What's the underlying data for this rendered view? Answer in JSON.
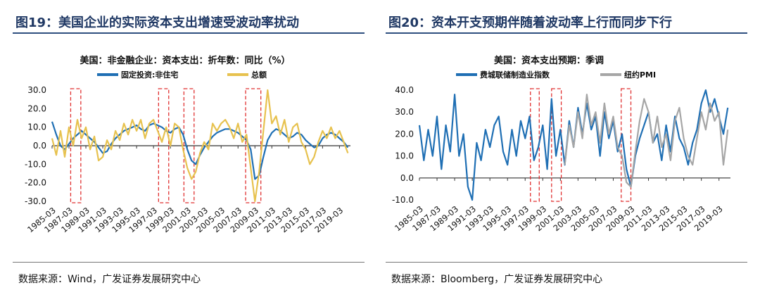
{
  "colors": {
    "blue": "#1f6fb4",
    "gold": "#e7c24f",
    "gray": "#a6a6a6",
    "dash": "#e03030",
    "title": "#1f3864"
  },
  "panels": [
    {
      "fig_title": "图19：美国企业的实际资本支出增速受波动率扰动",
      "source": "数据来源：Wind，广发证券发展研究中心"
    },
    {
      "fig_title": "图20：资本开支预期伴随着波动率上行而同步下行",
      "source": "数据来源：Bloomberg，广发证券发展研究中心"
    }
  ],
  "chart_data": [
    {
      "type": "line",
      "title": "美国：非金融企业：资本支出：折年数：同比（%）",
      "ylim": [
        -30,
        30
      ],
      "yticks": [
        "30.0",
        "20.0",
        "10.0",
        "0.0",
        "-10.0",
        "-20.0",
        "-30.0"
      ],
      "x_range": [
        1985.0,
        2020.3
      ],
      "xticks": [
        "1985-03",
        "1987-03",
        "1989-03",
        "1991-03",
        "1993-03",
        "1995-03",
        "1997-03",
        "1999-03",
        "2001-03",
        "2003-03",
        "2005-03",
        "2007-03",
        "2009-03",
        "2011-03",
        "2013-03",
        "2015-03",
        "2017-03",
        "2019-03"
      ],
      "highlight_periods": [
        [
          1987.2,
          1988.4
        ],
        [
          1997.6,
          1998.8
        ],
        [
          2000.6,
          2001.8
        ],
        [
          2007.9,
          2009.7
        ]
      ],
      "series": [
        {
          "name": "固定投资:非住宅",
          "color": "#1f6fb4",
          "x": [
            1985.0,
            1985.5,
            1986.0,
            1986.5,
            1987.0,
            1987.5,
            1988.0,
            1988.5,
            1989.0,
            1989.5,
            1990.0,
            1990.5,
            1991.0,
            1991.5,
            1992.0,
            1992.5,
            1993.0,
            1993.5,
            1994.0,
            1994.5,
            1995.0,
            1995.5,
            1996.0,
            1996.5,
            1997.0,
            1997.5,
            1998.0,
            1998.5,
            1999.0,
            1999.5,
            2000.0,
            2000.5,
            2001.0,
            2001.5,
            2002.0,
            2002.5,
            2003.0,
            2003.5,
            2004.0,
            2004.5,
            2005.0,
            2005.5,
            2006.0,
            2006.5,
            2007.0,
            2007.5,
            2008.0,
            2008.5,
            2009.0,
            2009.5,
            2010.0,
            2010.5,
            2011.0,
            2011.5,
            2012.0,
            2012.5,
            2013.0,
            2013.5,
            2014.0,
            2014.5,
            2015.0,
            2015.5,
            2016.0,
            2016.5,
            2017.0,
            2017.5,
            2018.0,
            2018.5,
            2019.0,
            2019.5,
            2020.0
          ],
          "y": [
            13,
            6,
            0,
            -2,
            1,
            4,
            6,
            8,
            6,
            4,
            2,
            -1,
            -4,
            -3,
            1,
            4,
            6,
            8,
            9,
            10,
            11,
            9,
            8,
            11,
            12,
            11,
            10,
            8,
            7,
            9,
            10,
            6,
            -2,
            -8,
            -10,
            -5,
            -1,
            2,
            5,
            7,
            8,
            9,
            9,
            8,
            7,
            5,
            3,
            -2,
            -18,
            -16,
            -6,
            3,
            7,
            9,
            8,
            6,
            4,
            5,
            7,
            6,
            3,
            1,
            -1,
            0,
            4,
            6,
            7,
            6,
            4,
            2,
            -1
          ]
        },
        {
          "name": "总额",
          "color": "#e7c24f",
          "x": [
            1985.0,
            1985.5,
            1986.0,
            1986.5,
            1987.0,
            1987.5,
            1988.0,
            1988.5,
            1989.0,
            1989.5,
            1990.0,
            1990.5,
            1991.0,
            1991.5,
            1992.0,
            1992.5,
            1993.0,
            1993.5,
            1994.0,
            1994.5,
            1995.0,
            1995.5,
            1996.0,
            1996.5,
            1997.0,
            1997.5,
            1998.0,
            1998.5,
            1999.0,
            1999.5,
            2000.0,
            2000.5,
            2001.0,
            2001.5,
            2002.0,
            2002.5,
            2003.0,
            2003.5,
            2004.0,
            2004.5,
            2005.0,
            2005.5,
            2006.0,
            2006.5,
            2007.0,
            2007.5,
            2008.0,
            2008.5,
            2009.0,
            2009.5,
            2010.0,
            2010.5,
            2011.0,
            2011.5,
            2012.0,
            2012.5,
            2013.0,
            2013.5,
            2014.0,
            2014.5,
            2015.0,
            2015.5,
            2016.0,
            2016.5,
            2017.0,
            2017.5,
            2018.0,
            2018.5,
            2019.0,
            2019.5,
            2020.0
          ],
          "y": [
            4,
            -5,
            8,
            -6,
            10,
            0,
            14,
            4,
            10,
            -2,
            5,
            -8,
            -6,
            3,
            -2,
            8,
            3,
            12,
            6,
            14,
            8,
            14,
            4,
            12,
            14,
            8,
            2,
            10,
            0,
            12,
            10,
            -2,
            -12,
            -18,
            -14,
            -4,
            2,
            -2,
            12,
            8,
            12,
            14,
            10,
            4,
            12,
            2,
            6,
            -12,
            -30,
            -14,
            8,
            30,
            12,
            16,
            6,
            14,
            2,
            10,
            12,
            2,
            -2,
            -10,
            -6,
            2,
            8,
            4,
            10,
            4,
            8,
            2,
            -4
          ]
        }
      ]
    },
    {
      "type": "line",
      "title": "美国：资本支出预期：季调",
      "ylim": [
        -10,
        40
      ],
      "yticks": [
        "40.0",
        "30.0",
        "20.0",
        "10.0",
        "0.0",
        "-10.0"
      ],
      "x_range": [
        1985.0,
        2020.3
      ],
      "xticks": [
        "1985-03",
        "1987-03",
        "1989-03",
        "1991-03",
        "1993-03",
        "1995-03",
        "1997-03",
        "1999-03",
        "2001-03",
        "2003-03",
        "2005-03",
        "2007-03",
        "2009-03",
        "2011-03",
        "2013-03",
        "2015-03",
        "2017-03",
        "2019-03"
      ],
      "highlight_periods": [
        [
          1997.6,
          1998.6
        ],
        [
          2000.0,
          2001.1
        ],
        [
          2007.9,
          2009.0
        ]
      ],
      "series": [
        {
          "name": "费城联储制造业指数",
          "color": "#1f6fb4",
          "x": [
            1985.0,
            1985.5,
            1986.0,
            1986.5,
            1987.0,
            1987.5,
            1988.0,
            1988.5,
            1989.0,
            1989.5,
            1990.0,
            1990.5,
            1991.0,
            1991.5,
            1992.0,
            1992.5,
            1993.0,
            1993.5,
            1994.0,
            1994.5,
            1995.0,
            1995.5,
            1996.0,
            1996.5,
            1997.0,
            1997.5,
            1998.0,
            1998.5,
            1999.0,
            1999.5,
            2000.0,
            2000.5,
            2001.0,
            2001.5,
            2002.0,
            2002.5,
            2003.0,
            2003.5,
            2004.0,
            2004.5,
            2005.0,
            2005.5,
            2006.0,
            2006.5,
            2007.0,
            2007.5,
            2008.0,
            2008.5,
            2009.0,
            2009.5,
            2010.0,
            2010.5,
            2011.0,
            2011.5,
            2012.0,
            2012.5,
            2013.0,
            2013.5,
            2014.0,
            2014.5,
            2015.0,
            2015.5,
            2016.0,
            2016.5,
            2017.0,
            2017.5,
            2018.0,
            2018.5,
            2019.0,
            2019.5,
            2020.0
          ],
          "y": [
            24,
            8,
            22,
            10,
            28,
            4,
            24,
            12,
            38,
            10,
            20,
            -4,
            -10,
            16,
            8,
            22,
            14,
            24,
            28,
            12,
            6,
            22,
            10,
            26,
            18,
            28,
            8,
            14,
            24,
            4,
            36,
            10,
            22,
            6,
            26,
            14,
            32,
            20,
            34,
            22,
            28,
            10,
            30,
            18,
            26,
            12,
            20,
            4,
            -4,
            10,
            18,
            24,
            30,
            16,
            20,
            8,
            24,
            12,
            28,
            18,
            14,
            6,
            16,
            22,
            34,
            40,
            30,
            36,
            28,
            20,
            32
          ]
        },
        {
          "name": "纽约PMI",
          "color": "#a6a6a6",
          "x": [
            2001.5,
            2002.0,
            2002.5,
            2003.0,
            2003.5,
            2004.0,
            2004.5,
            2005.0,
            2005.5,
            2006.0,
            2006.5,
            2007.0,
            2007.5,
            2008.0,
            2008.5,
            2009.0,
            2009.5,
            2010.0,
            2010.5,
            2011.0,
            2011.5,
            2012.0,
            2012.5,
            2013.0,
            2013.5,
            2014.0,
            2014.5,
            2015.0,
            2015.5,
            2016.0,
            2016.5,
            2017.0,
            2017.5,
            2018.0,
            2018.5,
            2019.0,
            2019.5,
            2020.0
          ],
          "y": [
            6,
            24,
            14,
            30,
            18,
            38,
            24,
            30,
            16,
            34,
            20,
            28,
            14,
            10,
            -2,
            -4,
            12,
            26,
            36,
            30,
            16,
            28,
            14,
            20,
            8,
            26,
            32,
            18,
            10,
            6,
            18,
            30,
            22,
            34,
            26,
            30,
            6,
            22
          ]
        }
      ]
    }
  ]
}
